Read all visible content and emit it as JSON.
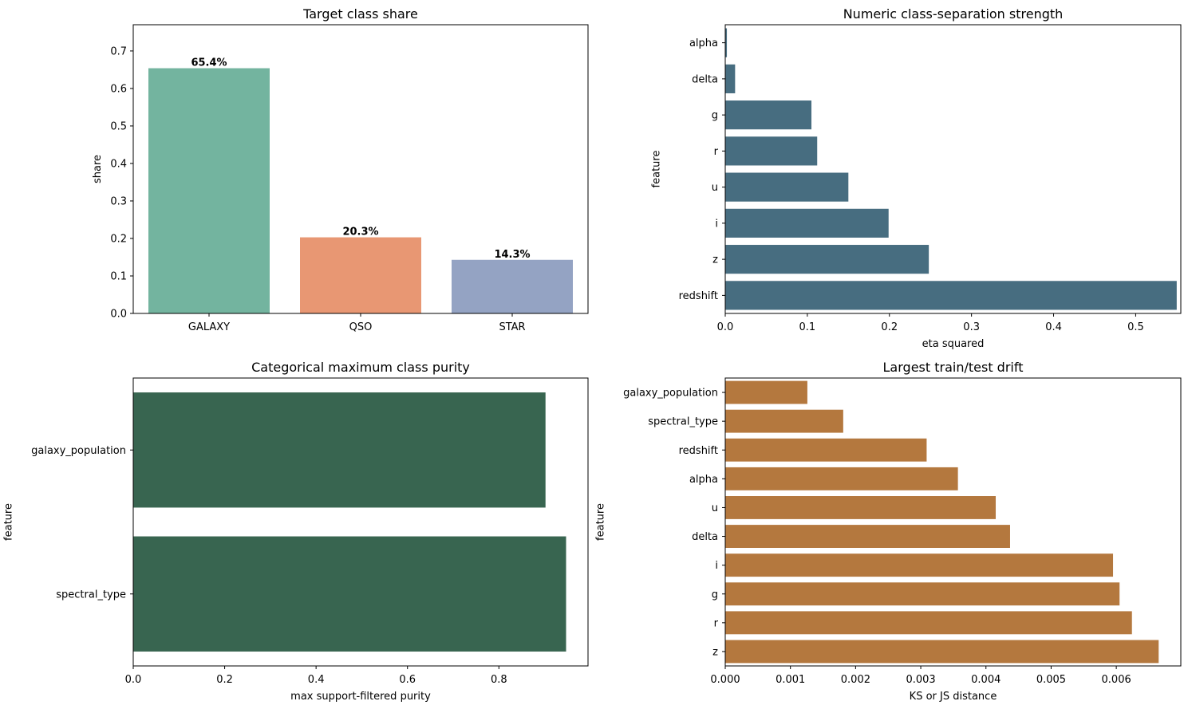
{
  "chart_data": [
    {
      "type": "bar",
      "orientation": "vertical",
      "title": "Target class share",
      "xlabel": "",
      "ylabel": "share",
      "categories": [
        "GALAXY",
        "QSO",
        "STAR"
      ],
      "values": [
        0.654,
        0.203,
        0.143
      ],
      "value_labels": [
        "65.4%",
        "20.3%",
        "14.3%"
      ],
      "colors": [
        "#73b49f",
        "#e89773",
        "#94a3c3"
      ],
      "ylim": [
        0,
        0.77
      ],
      "yticks": [
        0,
        0.1,
        0.2,
        0.3,
        0.4,
        0.5,
        0.6,
        0.7
      ],
      "ytick_labels": [
        "0.0",
        "0.1",
        "0.2",
        "0.3",
        "0.4",
        "0.5",
        "0.6",
        "0.7"
      ],
      "grid": false
    },
    {
      "type": "bar",
      "orientation": "horizontal",
      "title": "Numeric class-separation strength",
      "xlabel": "eta squared",
      "ylabel": "feature",
      "categories": [
        "alpha",
        "delta",
        "g",
        "r",
        "u",
        "i",
        "z",
        "redshift"
      ],
      "values": [
        0.002,
        0.012,
        0.105,
        0.112,
        0.15,
        0.199,
        0.248,
        0.55
      ],
      "colors": [
        "#476d80"
      ],
      "xlim": [
        0,
        0.555
      ],
      "xticks": [
        0,
        0.1,
        0.2,
        0.3,
        0.4,
        0.5
      ],
      "xtick_labels": [
        "0.0",
        "0.1",
        "0.2",
        "0.3",
        "0.4",
        "0.5"
      ],
      "grid": false
    },
    {
      "type": "bar",
      "orientation": "horizontal",
      "title": "Categorical maximum class purity",
      "xlabel": "max support-filtered purity",
      "ylabel": "feature",
      "categories": [
        "galaxy_population",
        "spectral_type"
      ],
      "values": [
        0.902,
        0.947
      ],
      "colors": [
        "#386550"
      ],
      "xlim": [
        0,
        0.995
      ],
      "xticks": [
        0,
        0.2,
        0.4,
        0.6,
        0.8
      ],
      "xtick_labels": [
        "0.0",
        "0.2",
        "0.4",
        "0.6",
        "0.8"
      ],
      "grid": false
    },
    {
      "type": "bar",
      "orientation": "horizontal",
      "title": "Largest train/test drift",
      "xlabel": "KS or JS distance",
      "ylabel": "feature",
      "categories": [
        "galaxy_population",
        "spectral_type",
        "redshift",
        "alpha",
        "u",
        "delta",
        "i",
        "g",
        "r",
        "z"
      ],
      "values": [
        0.00126,
        0.00181,
        0.00309,
        0.00357,
        0.00415,
        0.00437,
        0.00595,
        0.00605,
        0.00624,
        0.00665
      ],
      "colors": [
        "#b4783e"
      ],
      "xlim": [
        0,
        0.00699
      ],
      "xticks": [
        0,
        0.001,
        0.002,
        0.003,
        0.004,
        0.005,
        0.006
      ],
      "xtick_labels": [
        "0.000",
        "0.001",
        "0.002",
        "0.003",
        "0.004",
        "0.005",
        "0.006"
      ],
      "grid": false
    }
  ]
}
